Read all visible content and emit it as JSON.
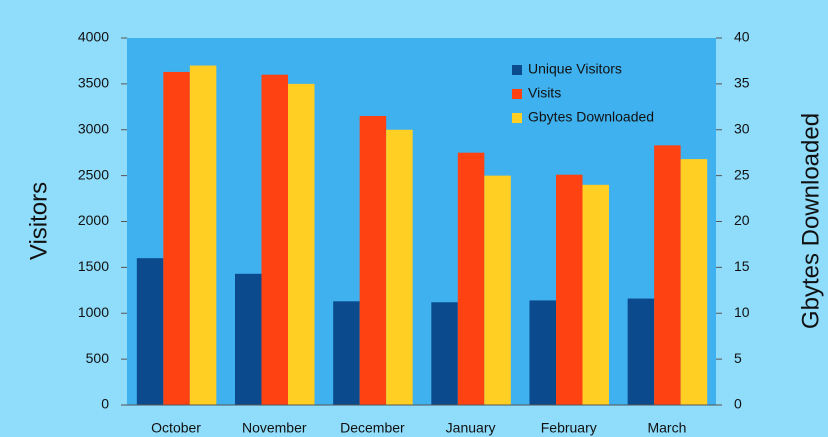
{
  "chart_data": {
    "type": "bar",
    "categories": [
      "October",
      "November",
      "December",
      "January",
      "February",
      "March"
    ],
    "series": [
      {
        "name": "Unique Visitors",
        "color": "#0b4a8c",
        "values": [
          1600,
          1430,
          1130,
          1120,
          1140,
          1160
        ]
      },
      {
        "name": "Visits",
        "color": "#ff4212",
        "values": [
          3630,
          3600,
          3150,
          2750,
          2510,
          2830
        ]
      },
      {
        "name": "Gbytes Downloaded",
        "color": "#ffcf24",
        "axis": "y2",
        "values": [
          37,
          35,
          30,
          25,
          24,
          26.8
        ]
      }
    ],
    "y_label": "Visitors",
    "y2_label": "Gbytes Downloaded",
    "ylim": [
      0,
      4000
    ],
    "yticks": [
      0,
      500,
      1000,
      1500,
      2000,
      2500,
      3000,
      3500,
      4000
    ],
    "y2lim": [
      0,
      40
    ],
    "y2ticks": [
      0,
      5,
      10,
      15,
      20,
      25,
      30,
      35,
      40
    ],
    "legend": "upper right"
  }
}
